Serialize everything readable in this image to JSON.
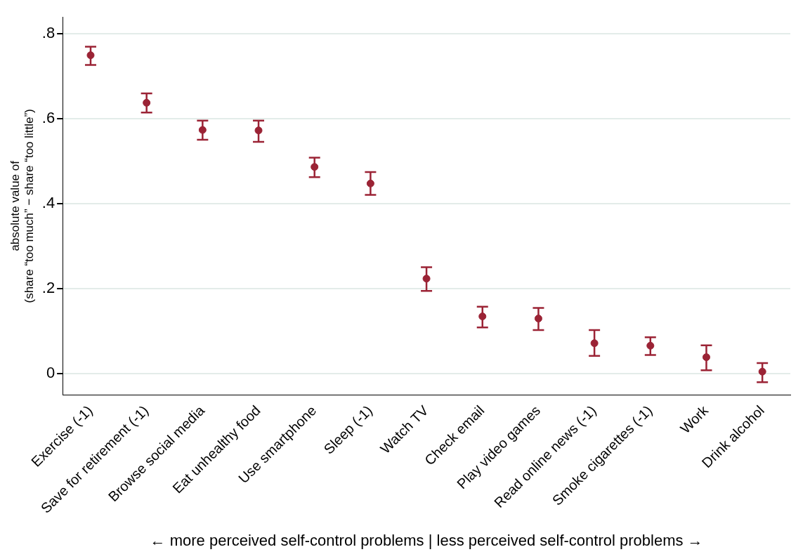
{
  "chart_data": {
    "type": "scatter",
    "ylabel": "absolute value of\n(share “too much” − share “too little”)",
    "xlabel": "← more perceived self-control problems | less perceived self-control problems →",
    "categories": [
      "Exercise (-1)",
      "Save for retirement (-1)",
      "Browse social media",
      "Eat unhealthy food",
      "Use smartphone",
      "Sleep (-1)",
      "Watch TV",
      "Check email",
      "Play video games",
      "Read online news (-1)",
      "Smoke cigarettes (-1)",
      "Work",
      "Drink alcohol"
    ],
    "series": [
      {
        "color": "#9b2335",
        "values": [
          0.75,
          0.638,
          0.574,
          0.573,
          0.487,
          0.448,
          0.224,
          0.135,
          0.13,
          0.072,
          0.066,
          0.039,
          0.005
        ],
        "errors": [
          [
            0.727,
            0.77
          ],
          [
            0.615,
            0.66
          ],
          [
            0.551,
            0.596
          ],
          [
            0.546,
            0.596
          ],
          [
            0.463,
            0.509
          ],
          [
            0.421,
            0.475
          ],
          [
            0.195,
            0.251
          ],
          [
            0.109,
            0.158
          ],
          [
            0.103,
            0.155
          ],
          [
            0.042,
            0.103
          ],
          [
            0.044,
            0.086
          ],
          [
            0.008,
            0.067
          ],
          [
            -0.02,
            0.025
          ]
        ]
      }
    ],
    "ylim": [
      -0.05,
      0.84
    ],
    "yticks": [
      {
        "value": 0,
        "label": "0"
      },
      {
        "value": 0.2,
        "label": ".2"
      },
      {
        "value": 0.4,
        "label": ".4"
      },
      {
        "value": 0.6,
        "label": ".6"
      },
      {
        "value": 0.8,
        "label": ".8"
      }
    ],
    "grid": "y",
    "marker": "circle"
  }
}
